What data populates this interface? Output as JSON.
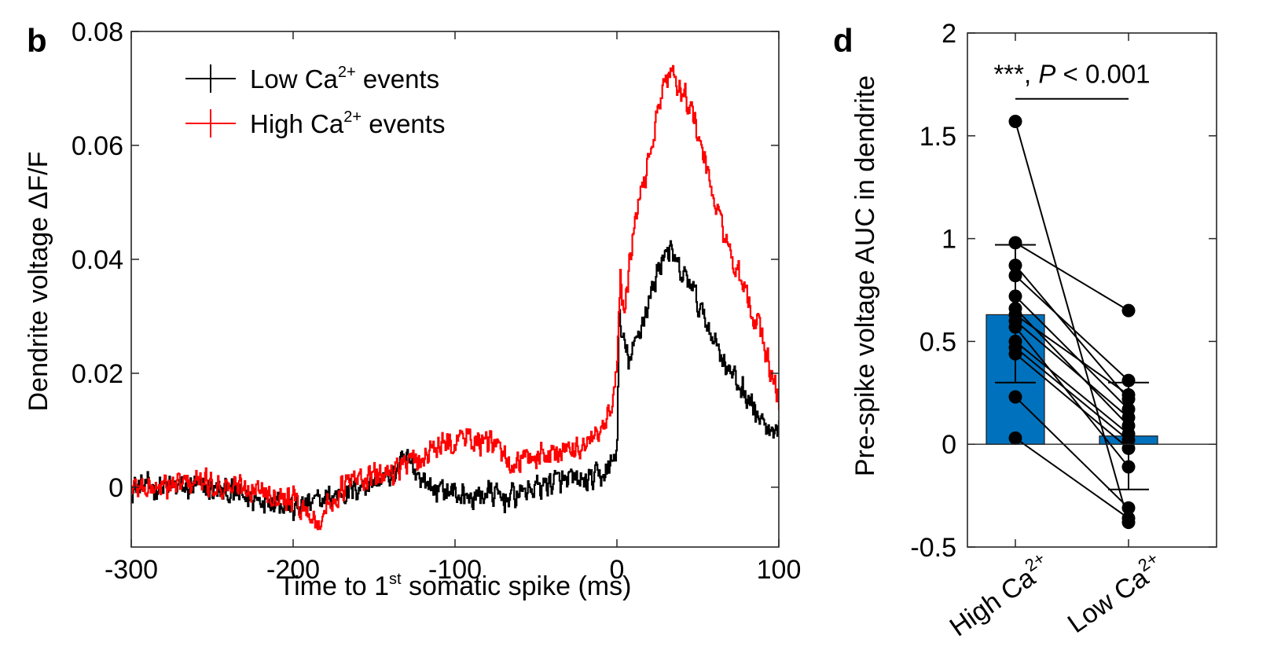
{
  "chart_data": [
    {
      "panel": "b",
      "type": "line",
      "title": "",
      "xlabel_parts": [
        "Time to 1",
        "st",
        " somatic spike (ms)"
      ],
      "ylabel": "Dendrite voltage ΔF/F",
      "xlim": [
        -300,
        100
      ],
      "ylim": [
        -0.0105,
        0.08
      ],
      "xticks": [
        -300,
        -200,
        -100,
        0,
        100
      ],
      "xtick_labels": [
        "-300",
        "-200",
        "-100",
        "0",
        "100"
      ],
      "yticks": [
        0,
        0.02,
        0.04,
        0.06,
        0.08
      ],
      "ytick_labels": [
        "0",
        "0.02",
        "0.04",
        "0.06",
        "0.08"
      ],
      "grid": false,
      "legend_position": "top-left",
      "series": [
        {
          "name": "Low Ca2+ events",
          "legend_parts": [
            "Low Ca",
            "2+",
            " events"
          ],
          "color": "#000000",
          "noise": 0.0028,
          "x": [
            -300,
            -280,
            -260,
            -240,
            -225,
            -210,
            -200,
            -190,
            -180,
            -170,
            -160,
            -150,
            -140,
            -130,
            -125,
            -115,
            -100,
            -90,
            -80,
            -70,
            -60,
            -50,
            -40,
            -30,
            -20,
            -10,
            -5,
            0,
            1,
            3,
            8,
            12,
            20,
            25,
            30,
            35,
            40,
            45,
            50,
            60,
            70,
            80,
            90,
            95,
            100
          ],
          "y": [
            0.0,
            0.0,
            0.0,
            -0.001,
            -0.002,
            -0.002,
            -0.004,
            -0.003,
            -0.002,
            -0.001,
            0.0,
            0.001,
            0.002,
            0.005,
            0.003,
            0.0,
            -0.001,
            -0.002,
            -0.001,
            -0.002,
            -0.001,
            0.0,
            0.001,
            0.001,
            0.001,
            0.002,
            0.003,
            0.007,
            0.03,
            0.026,
            0.022,
            0.026,
            0.033,
            0.038,
            0.042,
            0.04,
            0.037,
            0.036,
            0.032,
            0.026,
            0.02,
            0.016,
            0.011,
            0.009,
            0.009
          ]
        },
        {
          "name": "High Ca2+ events",
          "legend_parts": [
            "High Ca",
            "2+",
            " events"
          ],
          "color": "#ff0000",
          "noise": 0.0028,
          "x": [
            -300,
            -280,
            -260,
            -240,
            -225,
            -210,
            -200,
            -190,
            -185,
            -175,
            -165,
            -150,
            -140,
            -130,
            -120,
            -110,
            -100,
            -95,
            -85,
            -75,
            -65,
            -55,
            -45,
            -35,
            -25,
            -15,
            -8,
            -3,
            0,
            2,
            4,
            8,
            12,
            20,
            25,
            30,
            35,
            40,
            45,
            50,
            55,
            60,
            70,
            80,
            90,
            95,
            100
          ],
          "y": [
            0.0,
            0.0,
            0.001,
            0.0,
            0.0,
            -0.001,
            -0.002,
            -0.005,
            -0.006,
            -0.002,
            0.001,
            0.002,
            0.003,
            0.004,
            0.005,
            0.007,
            0.008,
            0.009,
            0.008,
            0.007,
            0.004,
            0.005,
            0.006,
            0.006,
            0.007,
            0.008,
            0.01,
            0.014,
            0.022,
            0.038,
            0.03,
            0.04,
            0.048,
            0.058,
            0.066,
            0.072,
            0.072,
            0.07,
            0.067,
            0.062,
            0.056,
            0.05,
            0.041,
            0.033,
            0.026,
            0.02,
            0.015
          ]
        }
      ]
    },
    {
      "panel": "d",
      "type": "bar",
      "title": "",
      "ylabel": "Pre-spike voltage AUC in dendrite",
      "categories": [
        "High Ca",
        "Low Ca"
      ],
      "category_superscript": "2+",
      "ylim": [
        -0.5,
        2
      ],
      "yticks": [
        -0.5,
        0,
        0.5,
        1,
        1.5,
        2
      ],
      "ytick_labels": [
        "-0.5",
        "0",
        "0.5",
        "1",
        "1.5",
        "2"
      ],
      "grid": false,
      "bar_color": "#0072bd",
      "values": [
        0.63,
        0.04
      ],
      "error_upper": [
        0.97,
        0.3
      ],
      "error_lower": [
        0.3,
        -0.22
      ],
      "paired_points": [
        {
          "high": 1.57,
          "low": -0.38
        },
        {
          "high": 0.98,
          "low": 0.65
        },
        {
          "high": 0.87,
          "low": 0.22
        },
        {
          "high": 0.82,
          "low": 0.31
        },
        {
          "high": 0.72,
          "low": 0.17
        },
        {
          "high": 0.66,
          "low": 0.09
        },
        {
          "high": 0.63,
          "low": 0.24
        },
        {
          "high": 0.6,
          "low": 0.13
        },
        {
          "high": 0.57,
          "low": -0.11
        },
        {
          "high": 0.5,
          "low": 0.05
        },
        {
          "high": 0.47,
          "low": 0.02
        },
        {
          "high": 0.44,
          "low": -0.02
        },
        {
          "high": 0.23,
          "low": -0.31
        },
        {
          "high": 0.03,
          "low": -0.36
        }
      ],
      "significance": {
        "stars": "***, ",
        "p_italic": "P",
        "p_text": " < 0.001",
        "between": [
          "High Ca",
          "Low Ca"
        ],
        "level": 1.68
      }
    }
  ],
  "panel_letters": [
    "b",
    "d"
  ]
}
